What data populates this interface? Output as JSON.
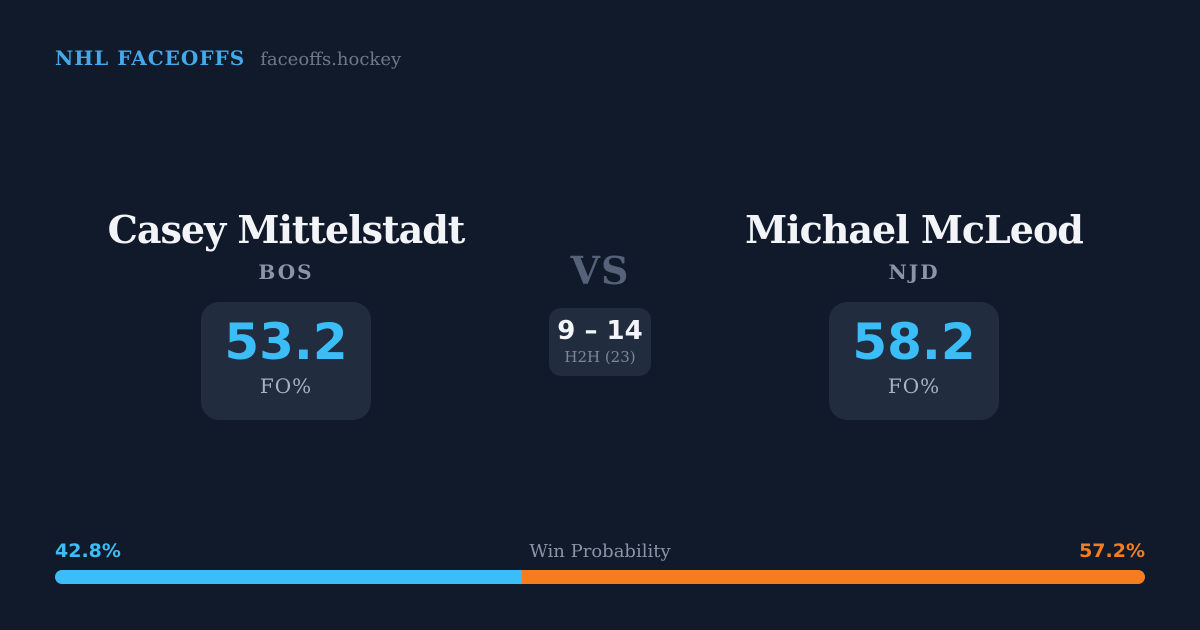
{
  "brand": {
    "title": "NHL FACEOFFS",
    "domain": "faceoffs.hockey"
  },
  "matchup": {
    "vs_label": "VS",
    "h2h": {
      "score": "9 – 14",
      "label": "H2H (23)"
    },
    "player_left": {
      "name": "Casey Mittelstadt",
      "team": "BOS",
      "stat_value": "53.2",
      "stat_label": "FO%"
    },
    "player_right": {
      "name": "Michael McLeod",
      "team": "NJD",
      "stat_value": "58.2",
      "stat_label": "FO%"
    }
  },
  "win_probability": {
    "label": "Win Probability",
    "left": {
      "text": "42.8%",
      "value": 42.8,
      "color": "#3bbdf8"
    },
    "right": {
      "text": "57.2%",
      "value": 57.2,
      "color": "#f57d1f"
    }
  },
  "colors": {
    "background": "#111a2b",
    "card": "#212c3e",
    "brand_blue": "#45a9e9",
    "stat_blue": "#3bbdf8",
    "bar_blue": "#3bbdf8",
    "bar_orange": "#f57d1f",
    "name_white": "#f2f4f8",
    "muted_gray": "#8a95a8"
  }
}
